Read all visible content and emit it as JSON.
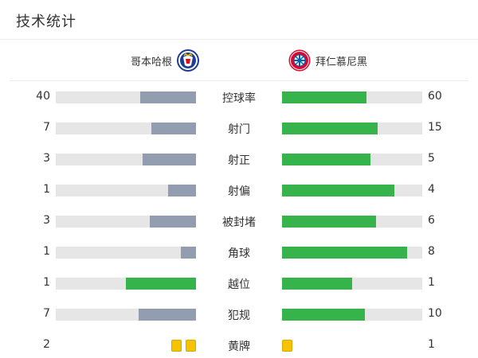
{
  "header": {
    "title": "技术统计"
  },
  "teams": {
    "home": {
      "name": "哥本哈根",
      "logo_icon": "fc-kobenhavn-crest-icon",
      "logo_color": "#1c3f94"
    },
    "away": {
      "name": "拜仁慕尼黑",
      "logo_icon": "fc-bayern-crest-icon",
      "logo_color": "#dc052d",
      "logo_text": "FC BAYERN MÜNCHEN"
    }
  },
  "colors": {
    "home_bar": "#929eb0",
    "away_bar": "#36b34a",
    "track": "#e6e6e6",
    "card": "#f5c400"
  },
  "stats": [
    {
      "label": "控球率",
      "home": "40",
      "away": "60",
      "home_fill": 0.4,
      "away_fill": 0.6,
      "home_color": "gray",
      "away_color": "green"
    },
    {
      "label": "射门",
      "home": "7",
      "away": "15",
      "home_fill": 0.32,
      "away_fill": 0.68,
      "home_color": "gray",
      "away_color": "green"
    },
    {
      "label": "射正",
      "home": "3",
      "away": "5",
      "home_fill": 0.38,
      "away_fill": 0.63,
      "home_color": "gray",
      "away_color": "green"
    },
    {
      "label": "射偏",
      "home": "1",
      "away": "4",
      "home_fill": 0.2,
      "away_fill": 0.8,
      "home_color": "gray",
      "away_color": "green"
    },
    {
      "label": "被封堵",
      "home": "3",
      "away": "6",
      "home_fill": 0.33,
      "away_fill": 0.67,
      "home_color": "gray",
      "away_color": "green"
    },
    {
      "label": "角球",
      "home": "1",
      "away": "8",
      "home_fill": 0.11,
      "away_fill": 0.89,
      "home_color": "gray",
      "away_color": "green"
    },
    {
      "label": "越位",
      "home": "1",
      "away": "1",
      "home_fill": 0.5,
      "away_fill": 0.5,
      "home_color": "green",
      "away_color": "green"
    },
    {
      "label": "犯规",
      "home": "7",
      "away": "10",
      "home_fill": 0.41,
      "away_fill": 0.59,
      "home_color": "gray",
      "away_color": "green"
    }
  ],
  "yellow_cards": {
    "label": "黄牌",
    "home": "2",
    "away": "1",
    "home_count": 2,
    "away_count": 1
  }
}
